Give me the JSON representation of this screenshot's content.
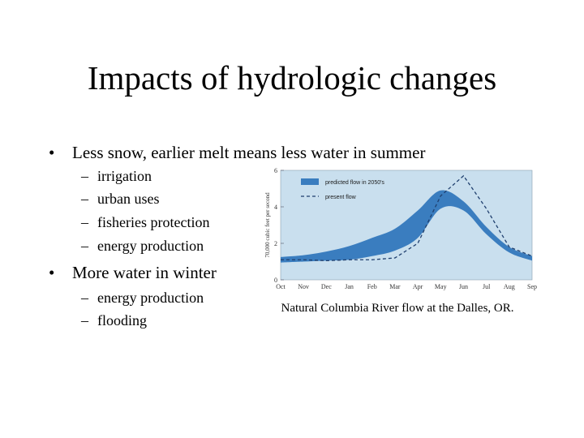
{
  "slide": {
    "title": "Impacts of hydrologic changes",
    "bullets": [
      {
        "text": "Less snow, earlier melt means less water in summer",
        "sub": [
          "irrigation",
          "urban uses",
          "fisheries protection",
          "energy production"
        ]
      },
      {
        "text": "More water in winter",
        "sub": [
          "energy production",
          "flooding"
        ]
      }
    ],
    "bullet_glyph": "•",
    "dash_glyph": "–",
    "caption": "Natural Columbia River flow at the Dalles, OR."
  },
  "chart_data": {
    "type": "area",
    "categories": [
      "Oct",
      "Nov",
      "Dec",
      "Jan",
      "Feb",
      "Mar",
      "Apr",
      "May",
      "Jun",
      "Jul",
      "Aug",
      "Sep"
    ],
    "ylabel": "70,000 cubic feet per second",
    "yticks": [
      0,
      2,
      4,
      6
    ],
    "ylim": [
      0,
      6
    ],
    "background": "#c9dfee",
    "legend_position": "top-left",
    "series": [
      {
        "name": "predicted flow in 2050's",
        "kind": "band",
        "color": "#3a7dbf",
        "lower": [
          0.95,
          1.0,
          1.05,
          1.1,
          1.3,
          1.6,
          2.3,
          3.9,
          3.8,
          2.5,
          1.5,
          1.05
        ],
        "upper": [
          1.25,
          1.35,
          1.55,
          1.85,
          2.3,
          2.8,
          3.8,
          4.9,
          4.3,
          2.9,
          1.8,
          1.3
        ]
      },
      {
        "name": "present flow",
        "kind": "line",
        "color": "#1f3f6e",
        "values": [
          1.1,
          1.1,
          1.05,
          1.1,
          1.1,
          1.2,
          2.0,
          4.6,
          5.7,
          3.9,
          1.8,
          1.3
        ]
      }
    ]
  }
}
